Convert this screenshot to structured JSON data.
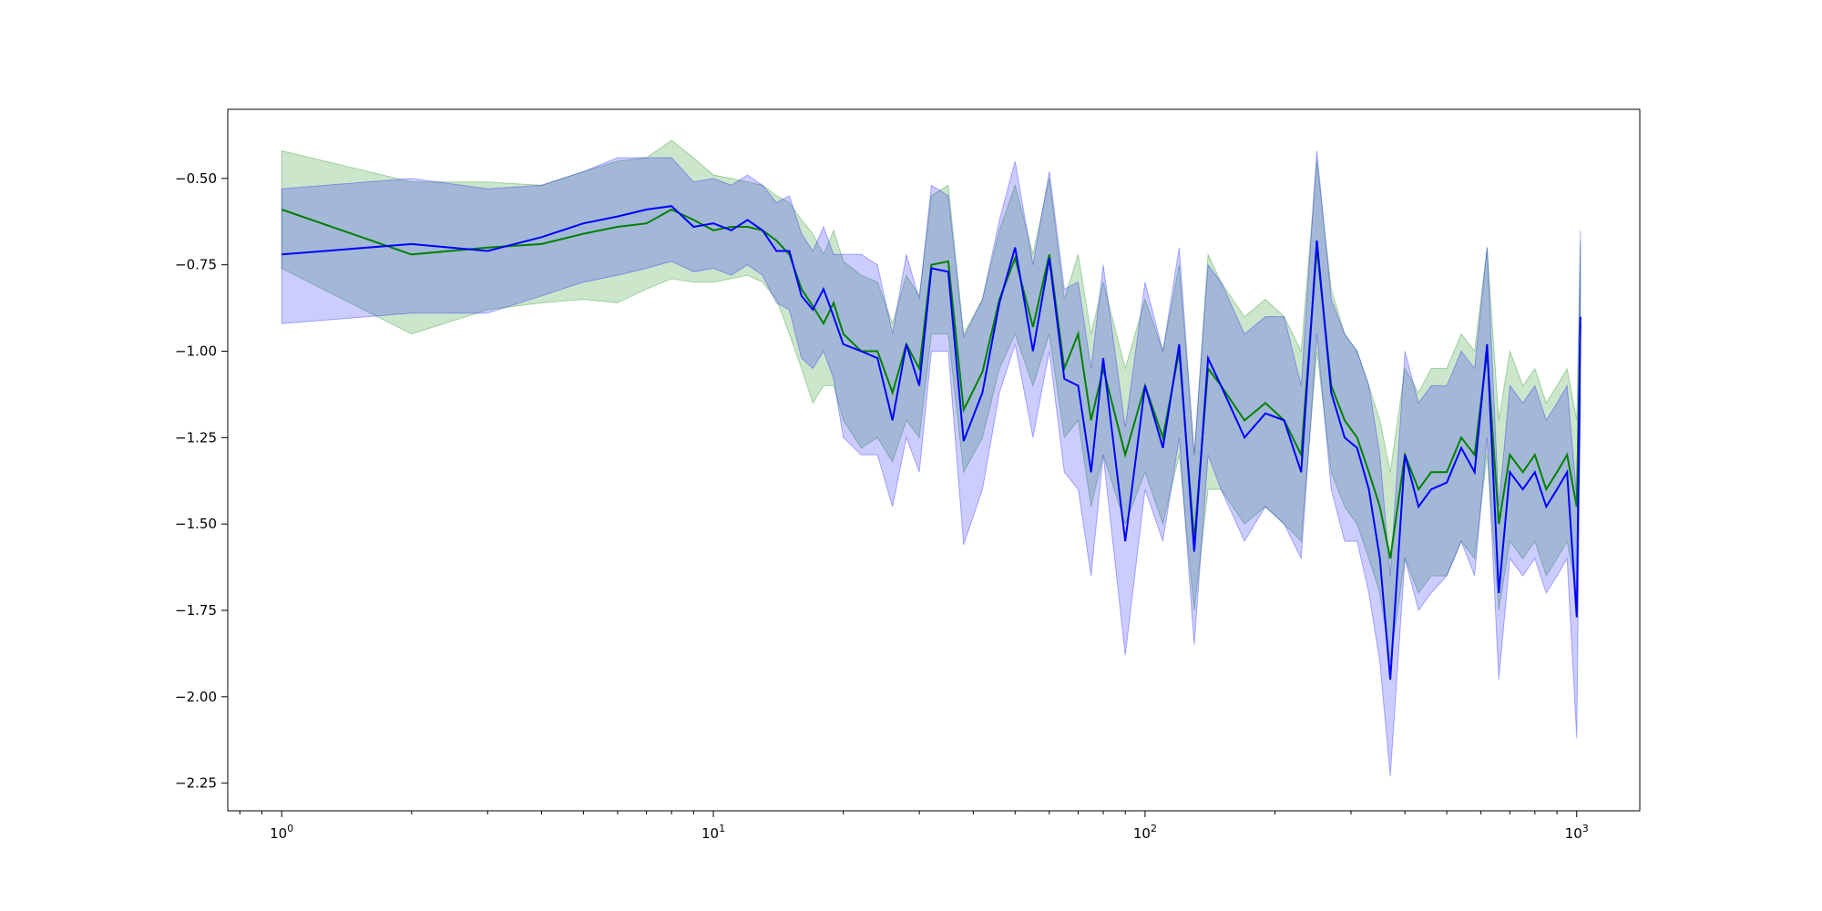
{
  "chart_data": {
    "type": "line",
    "xscale": "log",
    "xlim": [
      0.75,
      1400
    ],
    "ylim": [
      -2.33,
      -0.3
    ],
    "x_ticks": [
      {
        "value": 1,
        "base": "10",
        "exp": "0"
      },
      {
        "value": 10,
        "base": "10",
        "exp": "1"
      },
      {
        "value": 100,
        "base": "10",
        "exp": "2"
      },
      {
        "value": 1000,
        "base": "10",
        "exp": "3"
      }
    ],
    "y_ticks": [
      {
        "value": -0.5,
        "label": "−0.50"
      },
      {
        "value": -0.75,
        "label": "−0.75"
      },
      {
        "value": -1.0,
        "label": "−1.00"
      },
      {
        "value": -1.25,
        "label": "−1.25"
      },
      {
        "value": -1.5,
        "label": "−1.50"
      },
      {
        "value": -1.75,
        "label": "−1.75"
      },
      {
        "value": -2.0,
        "label": "−2.00"
      },
      {
        "value": -2.25,
        "label": "−2.25"
      }
    ],
    "grid": false,
    "legend": "none",
    "series": [
      {
        "color": "#008000",
        "band_color": "#008000",
        "band_opacity": 0.2,
        "x": [
          1,
          2,
          3,
          4,
          5,
          6,
          7,
          8,
          9,
          10,
          11,
          12,
          13,
          14,
          15,
          16,
          17,
          18,
          19,
          20,
          22,
          24,
          26,
          28,
          30,
          32,
          35,
          38,
          42,
          46,
          50,
          55,
          60,
          65,
          70,
          75,
          80,
          90,
          100,
          110,
          120,
          130,
          140,
          150,
          170,
          190,
          210,
          230,
          250,
          270,
          290,
          310,
          330,
          350,
          370,
          400,
          430,
          460,
          500,
          540,
          580,
          620,
          660,
          700,
          750,
          800,
          850,
          900,
          950,
          1000,
          1020
        ],
        "y": [
          -0.59,
          -0.72,
          -0.7,
          -0.69,
          -0.66,
          -0.64,
          -0.63,
          -0.59,
          -0.62,
          -0.65,
          -0.64,
          -0.64,
          -0.65,
          -0.68,
          -0.72,
          -0.82,
          -0.87,
          -0.92,
          -0.86,
          -0.95,
          -1.0,
          -1.0,
          -1.12,
          -0.98,
          -1.05,
          -0.75,
          -0.74,
          -1.17,
          -1.06,
          -0.85,
          -0.73,
          -0.93,
          -0.72,
          -1.05,
          -0.95,
          -1.2,
          -1.05,
          -1.3,
          -1.1,
          -1.25,
          -1.0,
          -1.55,
          -1.05,
          -1.1,
          -1.2,
          -1.15,
          -1.2,
          -1.3,
          -0.7,
          -1.1,
          -1.2,
          -1.25,
          -1.35,
          -1.45,
          -1.6,
          -1.3,
          -1.4,
          -1.35,
          -1.35,
          -1.25,
          -1.3,
          -1.0,
          -1.5,
          -1.3,
          -1.35,
          -1.3,
          -1.4,
          -1.35,
          -1.3,
          -1.45,
          -0.92
        ],
        "lower": [
          -0.76,
          -0.95,
          -0.88,
          -0.86,
          -0.85,
          -0.86,
          -0.82,
          -0.79,
          -0.8,
          -0.8,
          -0.79,
          -0.78,
          -0.8,
          -0.85,
          -0.95,
          -1.05,
          -1.15,
          -1.1,
          -1.1,
          -1.2,
          -1.28,
          -1.25,
          -1.32,
          -1.2,
          -1.25,
          -0.95,
          -0.95,
          -1.35,
          -1.25,
          -1.05,
          -0.95,
          -1.1,
          -0.95,
          -1.25,
          -1.2,
          -1.45,
          -1.3,
          -1.5,
          -1.35,
          -1.5,
          -1.3,
          -1.75,
          -1.4,
          -1.4,
          -1.5,
          -1.45,
          -1.5,
          -1.55,
          -1.0,
          -1.35,
          -1.45,
          -1.5,
          -1.6,
          -1.7,
          -1.9,
          -1.6,
          -1.7,
          -1.65,
          -1.65,
          -1.55,
          -1.6,
          -1.3,
          -1.75,
          -1.55,
          -1.6,
          -1.55,
          -1.65,
          -1.6,
          -1.55,
          -1.7,
          -1.2
        ],
        "upper": [
          -0.42,
          -0.51,
          -0.51,
          -0.52,
          -0.48,
          -0.45,
          -0.44,
          -0.39,
          -0.44,
          -0.49,
          -0.5,
          -0.51,
          -0.52,
          -0.55,
          -0.57,
          -0.62,
          -0.66,
          -0.72,
          -0.65,
          -0.74,
          -0.78,
          -0.8,
          -0.92,
          -0.78,
          -0.84,
          -0.55,
          -0.52,
          -0.95,
          -0.85,
          -0.65,
          -0.52,
          -0.72,
          -0.5,
          -0.85,
          -0.72,
          -0.95,
          -0.8,
          -1.05,
          -0.85,
          -1.0,
          -0.75,
          -1.3,
          -0.72,
          -0.8,
          -0.9,
          -0.85,
          -0.9,
          -1.0,
          -0.45,
          -0.82,
          -0.95,
          -1.0,
          -1.1,
          -1.2,
          -1.35,
          -1.05,
          -1.12,
          -1.05,
          -1.05,
          -0.95,
          -1.0,
          -0.7,
          -1.2,
          -1.0,
          -1.1,
          -1.05,
          -1.15,
          -1.1,
          -1.05,
          -1.2,
          -0.68
        ]
      },
      {
        "color": "#0000ff",
        "band_color": "#0000ff",
        "band_opacity": 0.2,
        "x": [
          1,
          2,
          3,
          4,
          5,
          6,
          7,
          8,
          9,
          10,
          11,
          12,
          13,
          14,
          15,
          16,
          17,
          18,
          19,
          20,
          22,
          24,
          26,
          28,
          30,
          32,
          35,
          38,
          42,
          46,
          50,
          55,
          60,
          65,
          70,
          75,
          80,
          90,
          100,
          110,
          120,
          130,
          140,
          150,
          170,
          190,
          210,
          230,
          250,
          270,
          290,
          310,
          330,
          350,
          370,
          400,
          430,
          460,
          500,
          540,
          580,
          620,
          660,
          700,
          750,
          800,
          850,
          900,
          950,
          1000,
          1020
        ],
        "y": [
          -0.72,
          -0.69,
          -0.71,
          -0.67,
          -0.63,
          -0.61,
          -0.59,
          -0.58,
          -0.64,
          -0.63,
          -0.65,
          -0.62,
          -0.65,
          -0.71,
          -0.71,
          -0.84,
          -0.88,
          -0.82,
          -0.9,
          -0.98,
          -1.0,
          -1.02,
          -1.2,
          -0.98,
          -1.1,
          -0.76,
          -0.77,
          -1.26,
          -1.12,
          -0.86,
          -0.7,
          -1.0,
          -0.73,
          -1.08,
          -1.1,
          -1.35,
          -1.02,
          -1.55,
          -1.1,
          -1.28,
          -0.98,
          -1.58,
          -1.02,
          -1.1,
          -1.25,
          -1.18,
          -1.2,
          -1.35,
          -0.68,
          -1.12,
          -1.25,
          -1.28,
          -1.4,
          -1.6,
          -1.95,
          -1.3,
          -1.45,
          -1.4,
          -1.38,
          -1.28,
          -1.35,
          -0.98,
          -1.7,
          -1.35,
          -1.4,
          -1.35,
          -1.45,
          -1.4,
          -1.35,
          -1.77,
          -0.9
        ],
        "lower": [
          -0.92,
          -0.89,
          -0.89,
          -0.84,
          -0.8,
          -0.78,
          -0.76,
          -0.74,
          -0.77,
          -0.76,
          -0.78,
          -0.75,
          -0.78,
          -0.86,
          -0.88,
          -1.02,
          -1.05,
          -1.0,
          -1.08,
          -1.25,
          -1.3,
          -1.3,
          -1.45,
          -1.25,
          -1.35,
          -1.0,
          -1.0,
          -1.56,
          -1.4,
          -1.12,
          -0.98,
          -1.25,
          -1.0,
          -1.35,
          -1.4,
          -1.65,
          -1.3,
          -1.88,
          -1.4,
          -1.55,
          -1.25,
          -1.85,
          -1.3,
          -1.4,
          -1.55,
          -1.45,
          -1.5,
          -1.6,
          -0.95,
          -1.4,
          -1.55,
          -1.55,
          -1.7,
          -1.9,
          -2.23,
          -1.6,
          -1.75,
          -1.7,
          -1.65,
          -1.55,
          -1.65,
          -1.25,
          -1.95,
          -1.6,
          -1.65,
          -1.6,
          -1.7,
          -1.65,
          -1.6,
          -2.12,
          -1.15
        ],
        "upper": [
          -0.53,
          -0.5,
          -0.53,
          -0.52,
          -0.48,
          -0.44,
          -0.44,
          -0.44,
          -0.51,
          -0.5,
          -0.52,
          -0.49,
          -0.52,
          -0.57,
          -0.55,
          -0.66,
          -0.71,
          -0.64,
          -0.72,
          -0.72,
          -0.72,
          -0.75,
          -0.95,
          -0.72,
          -0.85,
          -0.52,
          -0.55,
          -0.96,
          -0.85,
          -0.62,
          -0.45,
          -0.75,
          -0.48,
          -0.82,
          -0.8,
          -1.05,
          -0.75,
          -1.22,
          -0.8,
          -1.0,
          -0.7,
          -1.3,
          -0.75,
          -0.8,
          -0.95,
          -0.9,
          -0.9,
          -1.1,
          -0.42,
          -0.85,
          -0.95,
          -1.0,
          -1.1,
          -1.3,
          -1.65,
          -1.0,
          -1.15,
          -1.1,
          -1.1,
          -1.0,
          -1.05,
          -0.7,
          -1.45,
          -1.1,
          -1.15,
          -1.1,
          -1.2,
          -1.15,
          -1.1,
          -1.42,
          -0.65
        ]
      }
    ]
  }
}
